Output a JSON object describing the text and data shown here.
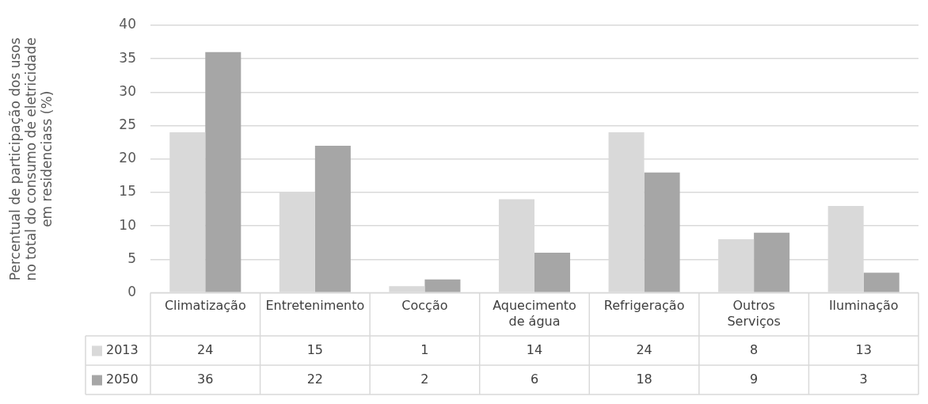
{
  "chart_data": {
    "type": "bar",
    "ylabel": "Percentual de participação dos usos no total do consumo de eletricidade em residenciass (%)",
    "categories": [
      "Climatização",
      "Entretenimento",
      "Cocção",
      "Aquecimento de água",
      "Refrigeração",
      "Outros Serviços",
      "Iluminação"
    ],
    "series": [
      {
        "name": "2013",
        "color": "#d9d9d9",
        "values": [
          24,
          15,
          1,
          14,
          24,
          8,
          13
        ]
      },
      {
        "name": "2050",
        "color": "#a6a6a6",
        "values": [
          36,
          22,
          2,
          6,
          18,
          9,
          3
        ]
      }
    ],
    "ylim": [
      0,
      40
    ],
    "yticks": [
      0,
      5,
      10,
      15,
      20,
      25,
      30,
      35,
      40
    ],
    "grid": "y",
    "legend": "bottom left",
    "data_labels": true
  }
}
